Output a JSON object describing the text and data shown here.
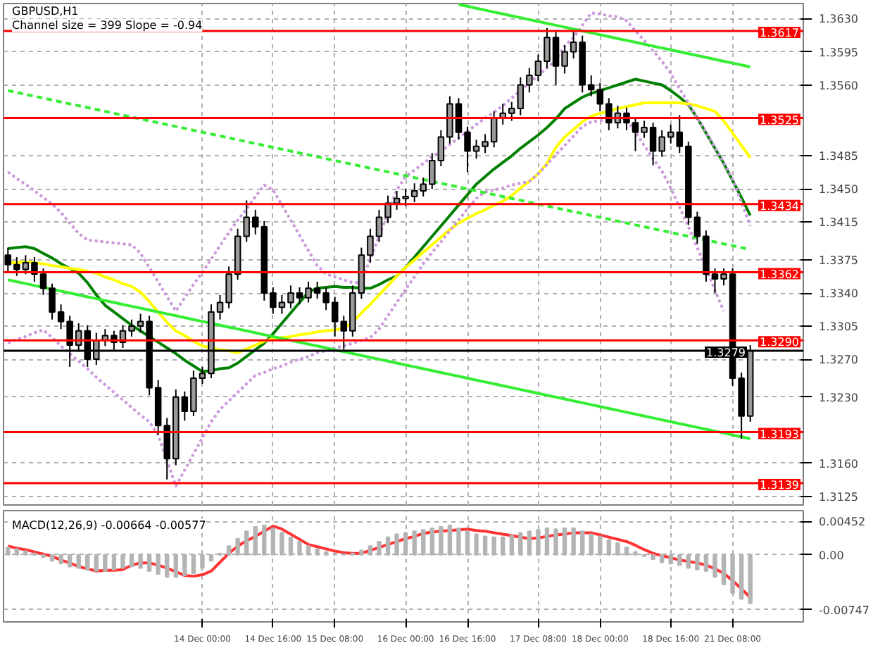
{
  "chart_data": [
    {
      "type": "candlestick",
      "title": "GBPUSD,H1",
      "annotations": [
        "Channel size = 399 Slope = -0.94"
      ],
      "color": "#000000",
      "grid": true,
      "tick_labels": "y",
      "ylim": [
        1.3116,
        1.3646
      ],
      "yticks": [
        {
          "value": 1.363,
          "label": "1.3630"
        },
        {
          "value": 1.3595,
          "label": "1.3595"
        },
        {
          "value": 1.356,
          "label": "1.3560"
        },
        {
          "value": 1.3485,
          "label": "1.3485"
        },
        {
          "value": 1.345,
          "label": "1.3450"
        },
        {
          "value": 1.3415,
          "label": "1.3415"
        },
        {
          "value": 1.3375,
          "label": "1.3375"
        },
        {
          "value": 1.334,
          "label": "1.3340"
        },
        {
          "value": 1.3305,
          "label": "1.3305"
        },
        {
          "value": 1.327,
          "label": "1.3270"
        },
        {
          "value": 1.323,
          "label": "1.3230"
        },
        {
          "value": 1.316,
          "label": "1.3160"
        },
        {
          "value": 1.3125,
          "label": "1.3125"
        }
      ],
      "categories": [
        null,
        null,
        null,
        null,
        null,
        null,
        null,
        null,
        null,
        null,
        null,
        null,
        null,
        null,
        null,
        null,
        null,
        null,
        null,
        null,
        null,
        null,
        null,
        null,
        null,
        null,
        null,
        null,
        null,
        null,
        null,
        null,
        null,
        null,
        null,
        null,
        null,
        null,
        null,
        null,
        null,
        null,
        null,
        null,
        null,
        null,
        null,
        null,
        null,
        null,
        null,
        null,
        null,
        null,
        null,
        null,
        null,
        null,
        null,
        null,
        null,
        null,
        null,
        null,
        null,
        null,
        null,
        null,
        null,
        null,
        null,
        null,
        null,
        null,
        null,
        null,
        null,
        null,
        null,
        null,
        null,
        null,
        null,
        null,
        null
      ],
      "ohlc": [
        [
          1.338,
          1.3388,
          1.3362,
          1.337
        ],
        [
          1.337,
          1.3378,
          1.3358,
          1.3365
        ],
        [
          1.3365,
          1.338,
          1.336,
          1.3372
        ],
        [
          1.3372,
          1.3378,
          1.3352,
          1.336
        ],
        [
          1.336,
          1.3366,
          1.3338,
          1.3345
        ],
        [
          1.3345,
          1.335,
          1.3312,
          1.332
        ],
        [
          1.332,
          1.3328,
          1.3302,
          1.331
        ],
        [
          1.331,
          1.3316,
          1.3262,
          1.3285
        ],
        [
          1.3285,
          1.3308,
          1.3278,
          1.33
        ],
        [
          1.33,
          1.3306,
          1.3262,
          1.327
        ],
        [
          1.327,
          1.3298,
          1.3264,
          1.329
        ],
        [
          1.329,
          1.3302,
          1.3284,
          1.3295
        ],
        [
          1.3295,
          1.33,
          1.328,
          1.3288
        ],
        [
          1.3288,
          1.3306,
          1.3282,
          1.33
        ],
        [
          1.33,
          1.3312,
          1.3294,
          1.3305
        ],
        [
          1.3305,
          1.3318,
          1.3298,
          1.331
        ],
        [
          1.331,
          1.3316,
          1.3232,
          1.324
        ],
        [
          1.324,
          1.3248,
          1.319,
          1.32
        ],
        [
          1.32,
          1.3208,
          1.3143,
          1.3165
        ],
        [
          1.3165,
          1.3238,
          1.3158,
          1.323
        ],
        [
          1.323,
          1.3236,
          1.3205,
          1.3215
        ],
        [
          1.3215,
          1.3258,
          1.321,
          1.325
        ],
        [
          1.325,
          1.3262,
          1.3244,
          1.3255
        ],
        [
          1.3255,
          1.3328,
          1.325,
          1.332
        ],
        [
          1.332,
          1.3338,
          1.3312,
          1.333
        ],
        [
          1.333,
          1.3368,
          1.3324,
          1.336
        ],
        [
          1.336,
          1.3408,
          1.3354,
          1.34
        ],
        [
          1.34,
          1.3438,
          1.3394,
          1.342
        ],
        [
          1.342,
          1.3428,
          1.3402,
          1.341
        ],
        [
          1.341,
          1.3416,
          1.3332,
          1.334
        ],
        [
          1.334,
          1.3346,
          1.3318,
          1.3325
        ],
        [
          1.3325,
          1.3338,
          1.3318,
          1.333
        ],
        [
          1.333,
          1.3348,
          1.3324,
          1.334
        ],
        [
          1.334,
          1.3346,
          1.3328,
          1.3335
        ],
        [
          1.3335,
          1.3352,
          1.333,
          1.3345
        ],
        [
          1.3345,
          1.3352,
          1.3334,
          1.334
        ],
        [
          1.334,
          1.3346,
          1.3322,
          1.333
        ],
        [
          1.333,
          1.3336,
          1.3294,
          1.331
        ],
        [
          1.331,
          1.3316,
          1.328,
          1.33
        ],
        [
          1.33,
          1.3348,
          1.3294,
          1.334
        ],
        [
          1.334,
          1.3388,
          1.3334,
          1.338
        ],
        [
          1.338,
          1.3408,
          1.3372,
          1.34
        ],
        [
          1.34,
          1.3428,
          1.3394,
          1.342
        ],
        [
          1.342,
          1.3443,
          1.3414,
          1.3435
        ],
        [
          1.3435,
          1.3448,
          1.3428,
          1.344
        ],
        [
          1.344,
          1.345,
          1.3432,
          1.3442
        ],
        [
          1.3442,
          1.3456,
          1.3436,
          1.3448
        ],
        [
          1.3448,
          1.3462,
          1.3442,
          1.3455
        ],
        [
          1.3455,
          1.3488,
          1.345,
          1.348
        ],
        [
          1.348,
          1.3512,
          1.3474,
          1.3505
        ],
        [
          1.3505,
          1.3548,
          1.3498,
          1.354
        ],
        [
          1.354,
          1.3546,
          1.3502,
          1.351
        ],
        [
          1.351,
          1.3516,
          1.3468,
          1.349
        ],
        [
          1.349,
          1.3502,
          1.3482,
          1.3495
        ],
        [
          1.3495,
          1.3508,
          1.3488,
          1.35
        ],
        [
          1.35,
          1.3532,
          1.3494,
          1.3525
        ],
        [
          1.3525,
          1.354,
          1.3518,
          1.353
        ],
        [
          1.353,
          1.3542,
          1.3522,
          1.3535
        ],
        [
          1.3535,
          1.3568,
          1.3528,
          1.356
        ],
        [
          1.356,
          1.3578,
          1.3552,
          1.357
        ],
        [
          1.357,
          1.3592,
          1.3564,
          1.3585
        ],
        [
          1.3585,
          1.362,
          1.3578,
          1.361
        ],
        [
          1.361,
          1.3616,
          1.356,
          1.358
        ],
        [
          1.358,
          1.3602,
          1.3572,
          1.3595
        ],
        [
          1.3595,
          1.3616,
          1.3588,
          1.3605
        ],
        [
          1.3605,
          1.3612,
          1.3552,
          1.356
        ],
        [
          1.356,
          1.357,
          1.3548,
          1.3555
        ],
        [
          1.3555,
          1.3562,
          1.3532,
          1.354
        ],
        [
          1.354,
          1.3546,
          1.3512,
          1.352
        ],
        [
          1.352,
          1.3538,
          1.3514,
          1.353
        ],
        [
          1.353,
          1.3536,
          1.3512,
          1.352
        ],
        [
          1.352,
          1.3526,
          1.349,
          1.351
        ],
        [
          1.351,
          1.3522,
          1.3504,
          1.3515
        ],
        [
          1.3515,
          1.352,
          1.3475,
          1.349
        ],
        [
          1.349,
          1.3512,
          1.3484,
          1.3505
        ],
        [
          1.3505,
          1.3518,
          1.3498,
          1.351
        ],
        [
          1.351,
          1.3528,
          1.3488,
          1.3495
        ],
        [
          1.3495,
          1.35,
          1.3412,
          1.342
        ],
        [
          1.342,
          1.3426,
          1.3392,
          1.34
        ],
        [
          1.34,
          1.3406,
          1.3352,
          1.336
        ],
        [
          1.336,
          1.3366,
          1.334,
          1.3355
        ],
        [
          1.3355,
          1.3366,
          1.3348,
          1.336
        ],
        [
          1.336,
          1.3366,
          1.3242,
          1.325
        ],
        [
          1.325,
          1.3256,
          1.3186,
          1.321
        ],
        [
          1.321,
          1.3285,
          1.3204,
          1.3279
        ]
      ],
      "series": [
        {
          "type": "line",
          "color": "#008000",
          "line_style": "solid",
          "values": [
            1.3387,
            1.3388,
            1.3389,
            1.3387,
            1.3382,
            1.3377,
            1.3371,
            1.3366,
            1.3361,
            1.3351,
            1.3338,
            1.3327,
            1.332,
            1.3313,
            1.3306,
            1.33,
            1.3294,
            1.3288,
            1.3282,
            1.3276,
            1.3269,
            1.3263,
            1.3257,
            1.3258,
            1.326,
            1.3261,
            1.3266,
            1.3273,
            1.328,
            1.3287,
            1.3297,
            1.3308,
            1.3319,
            1.333,
            1.3341,
            1.3345,
            1.3346,
            1.3347,
            1.3346,
            1.3346,
            1.3345,
            1.3345,
            1.3349,
            1.3354,
            1.3358,
            1.3367,
            1.3378,
            1.3389,
            1.34,
            1.3411,
            1.3422,
            1.3433,
            1.3444,
            1.3455,
            1.3463,
            1.3471,
            1.3478,
            1.3485,
            1.3493,
            1.35,
            1.3507,
            1.3515,
            1.3524,
            1.3535,
            1.3541,
            1.3547,
            1.3551,
            1.3554,
            1.3557,
            1.356,
            1.3563,
            1.3566,
            1.3564,
            1.3562,
            1.356,
            1.3554,
            1.3547,
            1.3539,
            1.3525,
            1.3509,
            1.3493,
            1.3477,
            1.3459,
            1.3441,
            1.3422
          ]
        },
        {
          "type": "line",
          "color": "#ffff00",
          "line_style": "solid",
          "values": [
            1.3372,
            1.3372,
            1.3373,
            1.3372,
            1.3371,
            1.3369,
            1.3368,
            1.3366,
            1.3365,
            1.3363,
            1.3361,
            1.3357,
            1.3354,
            1.335,
            1.3347,
            1.3341,
            1.3331,
            1.332,
            1.3309,
            1.33,
            1.3295,
            1.3289,
            1.3284,
            1.3282,
            1.328,
            1.3279,
            1.3277,
            1.3281,
            1.3285,
            1.3289,
            1.3292,
            1.3293,
            1.3294,
            1.3296,
            1.3297,
            1.3299,
            1.33,
            1.3301,
            1.3303,
            1.3309,
            1.3319,
            1.3328,
            1.3338,
            1.3348,
            1.3358,
            1.3367,
            1.3375,
            1.3383,
            1.3391,
            1.3399,
            1.3407,
            1.3414,
            1.3419,
            1.3424,
            1.3428,
            1.3433,
            1.3437,
            1.3443,
            1.3451,
            1.3458,
            1.3466,
            1.3477,
            1.3494,
            1.3505,
            1.3513,
            1.3521,
            1.3527,
            1.353,
            1.3532,
            1.3535,
            1.3537,
            1.3539,
            1.3541,
            1.3541,
            1.3541,
            1.3541,
            1.3541,
            1.354,
            1.3538,
            1.3535,
            1.3532,
            1.3522,
            1.3509,
            1.3496,
            1.3483
          ]
        },
        {
          "type": "line",
          "color": "#cc99dd",
          "line_style": "dotted",
          "values": [
            1.3468,
            1.3461,
            1.3455,
            1.3448,
            1.3441,
            1.3434,
            1.3425,
            1.3414,
            1.3403,
            1.3396,
            1.3395,
            1.3394,
            1.3393,
            1.3392,
            1.3391,
            1.3382,
            1.3367,
            1.3352,
            1.3336,
            1.3321,
            1.3335,
            1.3349,
            1.3362,
            1.3376,
            1.339,
            1.3404,
            1.3417,
            1.3429,
            1.3442,
            1.3454,
            1.3449,
            1.3433,
            1.3417,
            1.3401,
            1.3385,
            1.3369,
            1.336,
            1.3357,
            1.3354,
            1.3351,
            1.3351,
            1.3376,
            1.34,
            1.3425,
            1.3449,
            1.3463,
            1.347,
            1.3477,
            1.3484,
            1.349,
            1.3497,
            1.3504,
            1.3511,
            1.3518,
            1.3525,
            1.3531,
            1.3538,
            1.3546,
            1.3554,
            1.3562,
            1.357,
            1.3578,
            1.3586,
            1.3601,
            1.361,
            1.3623,
            1.3636,
            1.3635,
            1.3633,
            1.3632,
            1.3628,
            1.3617,
            1.3607,
            1.3596,
            1.3585,
            1.3572,
            1.3556,
            1.3541,
            1.3525,
            1.351,
            1.3494,
            1.3478,
            1.346,
            1.3436,
            1.3411
          ]
        },
        {
          "type": "line",
          "color": "#cc99dd",
          "line_style": "dotted",
          "values": [
            1.3287,
            1.3291,
            1.3294,
            1.3298,
            1.3301,
            1.3293,
            1.3284,
            1.3276,
            1.3268,
            1.326,
            1.3251,
            1.3243,
            1.3235,
            1.3227,
            1.3219,
            1.3211,
            1.3204,
            1.319,
            1.3163,
            1.3136,
            1.3153,
            1.317,
            1.3187,
            1.3204,
            1.3217,
            1.3226,
            1.3235,
            1.3244,
            1.3253,
            1.3256,
            1.326,
            1.3263,
            1.3267,
            1.327,
            1.3273,
            1.3277,
            1.3279,
            1.3282,
            1.3284,
            1.3287,
            1.329,
            1.3293,
            1.3302,
            1.3316,
            1.333,
            1.3344,
            1.3357,
            1.3371,
            1.3383,
            1.3394,
            1.3406,
            1.3417,
            1.3429,
            1.344,
            1.3447,
            1.3449,
            1.3451,
            1.3454,
            1.3456,
            1.3458,
            1.3466,
            1.3476,
            1.3486,
            1.3496,
            1.3506,
            1.3516,
            1.3521,
            1.3522,
            1.3524,
            1.3526,
            1.3524,
            1.351,
            1.3496,
            1.3482,
            1.3469,
            1.3451,
            1.3431,
            1.341,
            1.3388,
            1.3366,
            1.3343,
            1.3321,
            null,
            null,
            null
          ]
        },
        {
          "type": "line",
          "color": "#33ee33",
          "line_style": "solid",
          "values": [
            1.3354,
            1.3352,
            1.335,
            1.3348,
            1.3346,
            1.3344,
            1.3342,
            1.334,
            1.3338,
            1.3336,
            1.3334,
            1.3332,
            1.333,
            1.3328,
            1.3326,
            1.3324,
            1.3322,
            1.332,
            1.3318,
            1.3316,
            1.3314,
            1.3312,
            1.331,
            1.3308,
            1.3306,
            1.3304,
            1.3302,
            1.33,
            1.3298,
            1.3296,
            1.3294,
            1.3292,
            1.329,
            1.3288,
            1.3286,
            1.3284,
            1.3282,
            1.328,
            1.3278,
            1.3276,
            1.3274,
            1.3272,
            1.327,
            1.3268,
            1.3266,
            1.3264,
            1.3262,
            1.326,
            1.3258,
            1.3256,
            1.3254,
            1.3252,
            1.325,
            1.3248,
            1.3246,
            1.3244,
            1.3242,
            1.324,
            1.3238,
            1.3236,
            1.3234,
            1.3232,
            1.323,
            1.3228,
            1.3226,
            1.3224,
            1.3222,
            1.322,
            1.3218,
            1.3216,
            1.3214,
            1.3212,
            1.321,
            1.3208,
            1.3206,
            1.3204,
            1.3202,
            1.32,
            1.3198,
            1.3196,
            1.3194,
            1.3192,
            1.319,
            1.3188,
            1.3186
          ]
        },
        {
          "type": "line",
          "color": "#33ee33",
          "line_style": "solid",
          "values": [
            null,
            null,
            null,
            null,
            null,
            null,
            null,
            null,
            null,
            null,
            null,
            null,
            null,
            null,
            null,
            null,
            null,
            null,
            null,
            null,
            null,
            null,
            null,
            null,
            null,
            null,
            null,
            null,
            null,
            null,
            null,
            null,
            null,
            null,
            null,
            null,
            null,
            null,
            null,
            null,
            null,
            null,
            null,
            null,
            null,
            null,
            null,
            null,
            null,
            null,
            null,
            1.3645,
            1.3643,
            1.3641,
            1.3639,
            1.3637,
            1.3635,
            1.3633,
            1.3631,
            1.3629,
            1.3627,
            1.3625,
            1.3623,
            1.3621,
            1.3619,
            1.3617,
            1.3615,
            1.3613,
            1.3611,
            1.3609,
            1.3607,
            1.3605,
            1.3603,
            1.3601,
            1.3599,
            1.3597,
            1.3595,
            1.3593,
            1.3591,
            1.3589,
            1.3587,
            1.3585,
            1.3583,
            1.3581,
            1.3579
          ]
        },
        {
          "type": "line",
          "color": "#33ee33",
          "line_style": "dashed",
          "values": [
            1.3554,
            1.3552,
            1.355,
            1.3548,
            1.3546,
            1.3544,
            1.3542,
            1.354,
            1.3538,
            1.3536,
            1.3534,
            1.3532,
            1.353,
            1.3528,
            1.3526,
            1.3524,
            1.3522,
            1.352,
            1.3518,
            1.3516,
            1.3514,
            1.3512,
            1.351,
            1.3508,
            1.3506,
            1.3504,
            1.3502,
            1.35,
            1.3498,
            1.3496,
            1.3494,
            1.3492,
            1.349,
            1.3488,
            1.3486,
            1.3484,
            1.3482,
            1.348,
            1.3478,
            1.3476,
            1.3474,
            1.3472,
            1.347,
            1.3468,
            1.3466,
            1.3464,
            1.3462,
            1.346,
            1.3458,
            1.3456,
            1.3454,
            1.3452,
            1.345,
            1.3448,
            1.3446,
            1.3444,
            1.3442,
            1.344,
            1.3438,
            1.3436,
            1.3434,
            1.3432,
            1.343,
            1.3428,
            1.3426,
            1.3424,
            1.3422,
            1.342,
            1.3418,
            1.3416,
            1.3414,
            1.3412,
            1.341,
            1.3408,
            1.3406,
            1.3404,
            1.3402,
            1.34,
            1.3398,
            1.3396,
            1.3394,
            1.3392,
            1.339,
            1.3388,
            1.3386
          ]
        }
      ],
      "ref_lines": [
        {
          "axis": "y",
          "value": 1.3617,
          "label": "1.3617",
          "color": "#ff0000"
        },
        {
          "axis": "y",
          "value": 1.3525,
          "label": "1.3525",
          "color": "#ff0000"
        },
        {
          "axis": "y",
          "value": 1.3434,
          "label": "1.3434",
          "color": "#ff0000"
        },
        {
          "axis": "y",
          "value": 1.3362,
          "label": "1.3362",
          "color": "#ff0000"
        },
        {
          "axis": "y",
          "value": 1.329,
          "label": "1.3290",
          "color": "#ff0000"
        },
        {
          "axis": "y",
          "value": 1.3279,
          "label": "1.3279",
          "color": "#000000"
        },
        {
          "axis": "y",
          "value": 1.3193,
          "label": "1.3193",
          "color": "#ff0000"
        },
        {
          "axis": "y",
          "value": 1.3139,
          "label": "1.3139",
          "color": "#ff0000"
        }
      ]
    },
    {
      "type": "bar",
      "title": "MACD(12,26,9) -0.00664 -0.00577",
      "color": "#b4b4b4",
      "grid": true,
      "ylim": [
        -0.0091,
        0.006
      ],
      "yticks": [
        {
          "value": 0.00452,
          "label": "0.00452"
        },
        {
          "value": 0,
          "label": "0.00"
        },
        {
          "value": -0.00747,
          "label": "-0.00747"
        }
      ],
      "categories": [
        null,
        null,
        null,
        null,
        null,
        null,
        null,
        null,
        null,
        null,
        null,
        null,
        null,
        null,
        null,
        null,
        null,
        null,
        null,
        null,
        null,
        null,
        "14 Dec 00:00",
        null,
        null,
        null,
        null,
        null,
        null,
        null,
        "14 Dec 16:00",
        null,
        null,
        null,
        null,
        null,
        null,
        "15 Dec 08:00",
        null,
        null,
        null,
        null,
        null,
        null,
        null,
        "16 Dec 00:00",
        null,
        null,
        null,
        null,
        null,
        null,
        "16 Dec 16:00",
        null,
        null,
        null,
        null,
        null,
        null,
        null,
        "17 Dec 08:00",
        null,
        null,
        null,
        null,
        null,
        null,
        "18 Dec 00:00",
        null,
        null,
        null,
        null,
        null,
        null,
        null,
        "18 Dec 16:00",
        null,
        null,
        null,
        null,
        null,
        null,
        "21 Dec 08:00",
        null,
        null
      ],
      "values": [
        0.001,
        0.0008,
        0.0005,
        0.0002,
        -0.0003,
        -0.0008,
        -0.0012,
        -0.0016,
        -0.0018,
        -0.002,
        -0.0022,
        -0.0022,
        -0.002,
        -0.0018,
        -0.0016,
        -0.0018,
        -0.0022,
        -0.0026,
        -0.003,
        -0.003,
        -0.0028,
        -0.0025,
        -0.0018,
        -0.0008,
        0.0002,
        0.0012,
        0.0022,
        0.0032,
        0.0038,
        0.004,
        0.0036,
        0.003,
        0.0024,
        0.0018,
        0.0012,
        0.0008,
        0.0004,
        0.0002,
        0.0001,
        0.0002,
        0.0006,
        0.0012,
        0.0018,
        0.0024,
        0.0028,
        0.003,
        0.0032,
        0.0034,
        0.0036,
        0.0038,
        0.004,
        0.0036,
        0.0032,
        0.0028,
        0.0025,
        0.0024,
        0.0024,
        0.0026,
        0.003,
        0.0032,
        0.0034,
        0.0036,
        0.0035,
        0.0036,
        0.0036,
        0.0032,
        0.0028,
        0.0025,
        0.002,
        0.0016,
        0.001,
        0.0004,
        -0.0002,
        -0.0006,
        -0.001,
        -0.0012,
        -0.0014,
        -0.0018,
        -0.002,
        -0.0022,
        -0.003,
        -0.004,
        -0.0052,
        -0.006,
        -0.0066
      ],
      "series": [
        {
          "type": "line",
          "color": "#ff3333",
          "line_style": "solid",
          "values": [
            0.0012,
            0.0009,
            0.0007,
            0.0004,
            0.0001,
            -0.0002,
            -0.0007,
            -0.0011,
            -0.0016,
            -0.0019,
            -0.0022,
            -0.0021,
            -0.0021,
            -0.002,
            -0.0014,
            -0.0011,
            -0.0011,
            -0.0014,
            -0.0018,
            -0.0023,
            -0.0028,
            -0.0029,
            -0.0027,
            -0.0022,
            -0.001,
            0.0002,
            0.0012,
            0.0019,
            0.0025,
            0.0032,
            0.0039,
            0.0035,
            0.0028,
            0.0021,
            0.0014,
            0.0011,
            0.0008,
            0.0005,
            0.0003,
            0.0002,
            0.0002,
            0.0006,
            0.001,
            0.0014,
            0.0018,
            0.0022,
            0.0025,
            0.0029,
            0.0031,
            0.0032,
            0.0033,
            0.0034,
            0.0035,
            0.0033,
            0.0032,
            0.003,
            0.0028,
            0.0026,
            0.0024,
            0.0022,
            0.0023,
            0.0025,
            0.0027,
            0.0028,
            0.003,
            0.003,
            0.003,
            0.0027,
            0.0024,
            0.0021,
            0.0018,
            0.0013,
            0.0007,
            0.0002,
            -0.0001,
            -0.0004,
            -0.0007,
            -0.0009,
            -0.0011,
            -0.0014,
            -0.0019,
            -0.0025,
            -0.0035,
            -0.0046,
            -0.0058
          ]
        }
      ]
    }
  ]
}
